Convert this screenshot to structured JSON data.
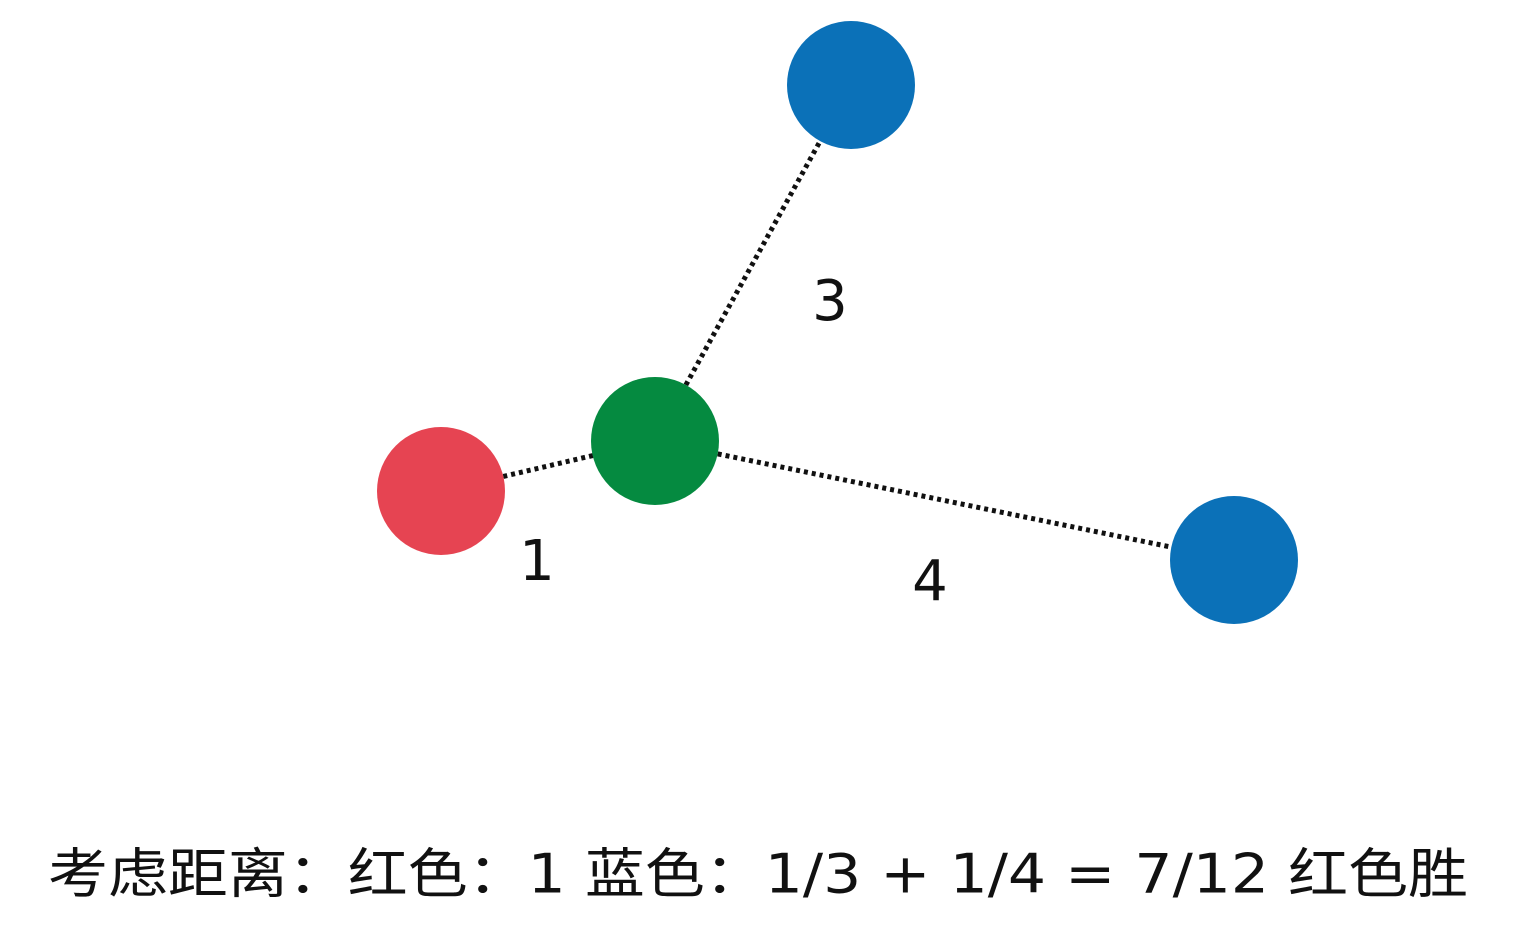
{
  "edges": [
    {
      "label": "1"
    },
    {
      "label": "3"
    },
    {
      "label": "4"
    }
  ],
  "caption": "考虑距离：红色：1 蓝色：1/3 + 1/4 = 7/12 红色胜"
}
